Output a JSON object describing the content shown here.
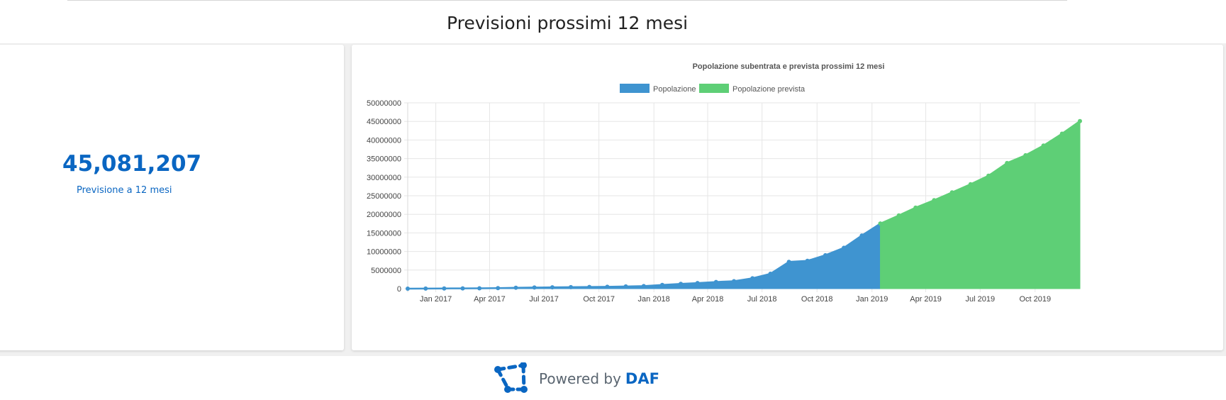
{
  "header": {
    "title": "Previsioni prossimi 12 mesi"
  },
  "kpi": {
    "value": "45,081,207",
    "label": "Previsione a 12 mesi"
  },
  "footer": {
    "powered": "Powered by",
    "brand": "DAF"
  },
  "icons": {
    "logo": "daf-logo-icon"
  },
  "colors": {
    "accent": "#0a66c2",
    "actual": "#3f94d0",
    "forecast": "#5ecf76"
  },
  "chart_data": {
    "type": "area",
    "title": "Popolazione subentrata e prevista prossimi 12 mesi",
    "legend_position": "top",
    "grid": true,
    "ylim": [
      0,
      50000000
    ],
    "yticks": [
      "0",
      "5000000",
      "10000000",
      "15000000",
      "20000000",
      "25000000",
      "30000000",
      "35000000",
      "40000000",
      "45000000",
      "50000000"
    ],
    "xlim": [
      "2016-11-15",
      "2019-12-15"
    ],
    "xticks": [
      {
        "date": "2017-01-01",
        "label": "Jan 2017"
      },
      {
        "date": "2017-04-01",
        "label": "Apr 2017"
      },
      {
        "date": "2017-07-01",
        "label": "Jul 2017"
      },
      {
        "date": "2017-10-01",
        "label": "Oct 2017"
      },
      {
        "date": "2018-01-01",
        "label": "Jan 2018"
      },
      {
        "date": "2018-04-01",
        "label": "Apr 2018"
      },
      {
        "date": "2018-07-01",
        "label": "Jul 2018"
      },
      {
        "date": "2018-10-01",
        "label": "Oct 2018"
      },
      {
        "date": "2019-01-01",
        "label": "Jan 2019"
      },
      {
        "date": "2019-04-01",
        "label": "Apr 2019"
      },
      {
        "date": "2019-07-01",
        "label": "Jul 2019"
      },
      {
        "date": "2019-10-01",
        "label": "Oct 2019"
      }
    ],
    "series": [
      {
        "name": "Popolazione",
        "color": "#3f94d0",
        "points": [
          [
            "2016-11-15",
            0
          ],
          [
            "2016-12-15",
            30000
          ],
          [
            "2017-01-15",
            50000
          ],
          [
            "2017-02-15",
            80000
          ],
          [
            "2017-03-15",
            100000
          ],
          [
            "2017-04-15",
            150000
          ],
          [
            "2017-05-15",
            250000
          ],
          [
            "2017-06-15",
            300000
          ],
          [
            "2017-07-15",
            350000
          ],
          [
            "2017-08-15",
            400000
          ],
          [
            "2017-09-15",
            450000
          ],
          [
            "2017-10-15",
            500000
          ],
          [
            "2017-11-15",
            600000
          ],
          [
            "2017-12-15",
            700000
          ],
          [
            "2018-01-15",
            1000000
          ],
          [
            "2018-02-15",
            1300000
          ],
          [
            "2018-03-15",
            1500000
          ],
          [
            "2018-04-15",
            1800000
          ],
          [
            "2018-05-15",
            2000000
          ],
          [
            "2018-06-15",
            2800000
          ],
          [
            "2018-07-15",
            4000000
          ],
          [
            "2018-08-15",
            7200000
          ],
          [
            "2018-09-15",
            7500000
          ],
          [
            "2018-10-15",
            9000000
          ],
          [
            "2018-11-15",
            11000000
          ],
          [
            "2018-12-15",
            14300000
          ],
          [
            "2019-01-15",
            17500000
          ]
        ]
      },
      {
        "name": "Popolazione prevista",
        "color": "#5ecf76",
        "points": [
          [
            "2019-01-15",
            17500000
          ],
          [
            "2019-02-15",
            19700000
          ],
          [
            "2019-03-15",
            21800000
          ],
          [
            "2019-04-15",
            23800000
          ],
          [
            "2019-05-15",
            25900000
          ],
          [
            "2019-06-15",
            28100000
          ],
          [
            "2019-07-15",
            30400000
          ],
          [
            "2019-08-15",
            33800000
          ],
          [
            "2019-09-15",
            35900000
          ],
          [
            "2019-10-15",
            38500000
          ],
          [
            "2019-11-15",
            41700000
          ],
          [
            "2019-12-15",
            45081207
          ]
        ]
      }
    ]
  }
}
